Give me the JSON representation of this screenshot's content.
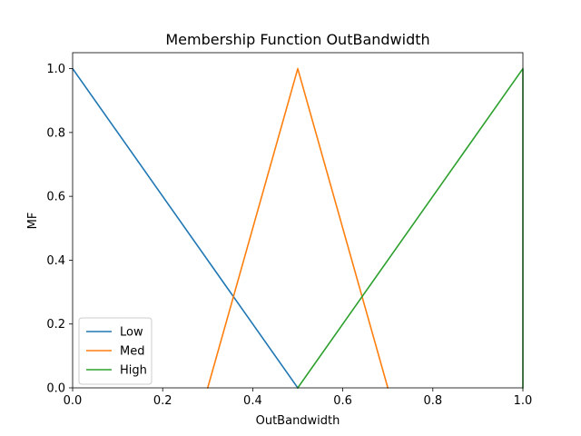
{
  "chart_data": {
    "type": "line",
    "title": "Membership Function OutBandwidth",
    "xlabel": "OutBandwidth",
    "ylabel": "MF",
    "xlim": [
      0,
      1
    ],
    "ylim": [
      0,
      1.05
    ],
    "x_ticks": [
      0.0,
      0.2,
      0.4,
      0.6,
      0.8,
      1.0
    ],
    "y_ticks": [
      0.0,
      0.2,
      0.4,
      0.6,
      0.8,
      1.0
    ],
    "x_tick_labels": [
      "0.0",
      "0.2",
      "0.4",
      "0.6",
      "0.8",
      "1.0"
    ],
    "y_tick_labels": [
      "0.0",
      "0.2",
      "0.4",
      "0.6",
      "0.8",
      "1.0"
    ],
    "grid": false,
    "legend_position": "lower-left",
    "series": [
      {
        "name": "Low",
        "color": "#1f77b4",
        "points": [
          [
            0.0,
            1.0
          ],
          [
            0.5,
            0.0
          ]
        ]
      },
      {
        "name": "Med",
        "color": "#ff7f0e",
        "points": [
          [
            0.3,
            0.0
          ],
          [
            0.5,
            1.0
          ],
          [
            0.7,
            0.0
          ]
        ]
      },
      {
        "name": "High",
        "color": "#2ca02c",
        "points": [
          [
            0.5,
            0.0
          ],
          [
            1.0,
            1.0
          ],
          [
            1.0,
            0.0
          ]
        ]
      }
    ]
  }
}
